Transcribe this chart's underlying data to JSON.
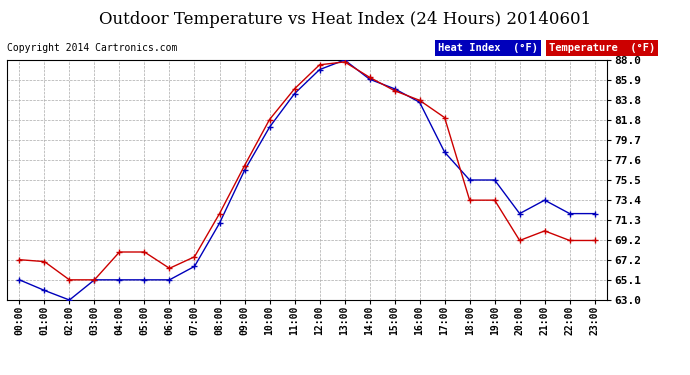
{
  "title": "Outdoor Temperature vs Heat Index (24 Hours) 20140601",
  "copyright": "Copyright 2014 Cartronics.com",
  "hours": [
    "00:00",
    "01:00",
    "02:00",
    "03:00",
    "04:00",
    "05:00",
    "06:00",
    "07:00",
    "08:00",
    "09:00",
    "10:00",
    "11:00",
    "12:00",
    "13:00",
    "14:00",
    "15:00",
    "16:00",
    "17:00",
    "18:00",
    "19:00",
    "20:00",
    "21:00",
    "22:00",
    "23:00"
  ],
  "heat_index": [
    65.1,
    64.0,
    63.0,
    65.1,
    65.1,
    65.1,
    65.1,
    66.5,
    71.0,
    76.5,
    81.0,
    84.5,
    87.0,
    88.0,
    86.0,
    85.0,
    83.6,
    78.4,
    75.5,
    75.5,
    72.0,
    73.4,
    72.0,
    72.0
  ],
  "temperature": [
    67.2,
    67.0,
    65.1,
    65.1,
    68.0,
    68.0,
    66.3,
    67.5,
    72.0,
    77.0,
    81.8,
    85.0,
    87.5,
    87.8,
    86.2,
    84.8,
    83.8,
    82.0,
    73.4,
    73.4,
    69.2,
    70.2,
    69.2,
    69.2
  ],
  "heat_index_color": "#0000bb",
  "temperature_color": "#cc0000",
  "ylim_min": 63.0,
  "ylim_max": 88.0,
  "yticks": [
    63.0,
    65.1,
    67.2,
    69.2,
    71.3,
    73.4,
    75.5,
    77.6,
    79.7,
    81.8,
    83.8,
    85.9,
    88.0
  ],
  "background_color": "#ffffff",
  "grid_color": "#aaaaaa",
  "title_fontsize": 12,
  "copyright_text_size": 7,
  "legend_heat_index_label": "Heat Index  (°F)",
  "legend_temperature_label": "Temperature  (°F)"
}
